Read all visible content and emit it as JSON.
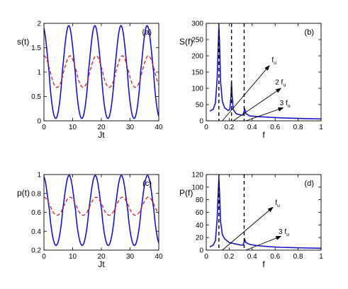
{
  "chart_data": [
    {
      "type": "line",
      "panel_label": "(a)",
      "xlabel": "Jt",
      "ylabel": "s(t)",
      "xlim": [
        0,
        40
      ],
      "ylim": [
        0,
        2.1
      ],
      "xticks": [
        "0",
        "10",
        "20",
        "30",
        "40"
      ],
      "yticks": [
        "0",
        "0.5",
        "1",
        "1.5",
        "2"
      ],
      "series": [
        {
          "style": "solid",
          "color": "#1414c8",
          "kind": "oscillation",
          "period": 9.1,
          "min": 0.05,
          "max": 2.05,
          "start": 2.0,
          "x_start": 0,
          "x_end": 40
        },
        {
          "style": "dashed",
          "color": "#e01818",
          "kind": "oscillation",
          "period": 9.1,
          "min": 0.72,
          "max": 1.4,
          "start": 1.45,
          "x_start": 0,
          "x_end": 40
        }
      ]
    },
    {
      "type": "line",
      "panel_label": "(b)",
      "xlabel": "f",
      "ylabel": "S(f)",
      "xlim": [
        0,
        1
      ],
      "ylim": [
        0,
        300
      ],
      "xticks": [
        "0",
        "0.2",
        "0.4",
        "0.6",
        "0.8",
        "1"
      ],
      "yticks": [
        "0",
        "50",
        "100",
        "150",
        "200",
        "250",
        "300"
      ],
      "series": [
        {
          "style": "solid",
          "color": "#1414c8",
          "kind": "spectrum",
          "points": [
            [
              0.03,
              30
            ],
            [
              0.06,
              35
            ],
            [
              0.08,
              55
            ],
            [
              0.095,
              130
            ],
            [
              0.105,
              240
            ],
            [
              0.11,
              290
            ],
            [
              0.115,
              250
            ],
            [
              0.125,
              120
            ],
            [
              0.14,
              60
            ],
            [
              0.16,
              40
            ],
            [
              0.19,
              32
            ],
            [
              0.205,
              35
            ],
            [
              0.215,
              75
            ],
            [
              0.22,
              120
            ],
            [
              0.225,
              80
            ],
            [
              0.235,
              35
            ],
            [
              0.26,
              22
            ],
            [
              0.3,
              18
            ],
            [
              0.32,
              18
            ],
            [
              0.33,
              30
            ],
            [
              0.335,
              38
            ],
            [
              0.345,
              22
            ],
            [
              0.38,
              15
            ],
            [
              0.45,
              13
            ],
            [
              0.55,
              11
            ],
            [
              0.65,
              9
            ],
            [
              0.75,
              8
            ],
            [
              0.85,
              7
            ],
            [
              1.0,
              6
            ]
          ]
        }
      ],
      "vlines": [
        0.11,
        0.22,
        0.33
      ],
      "annotations": [
        {
          "text": "f",
          "sub": "u",
          "arrow_from": [
            0.14,
            0
          ],
          "arrow_to": [
            0.55,
            170
          ],
          "text_at": [
            0.57,
            180
          ]
        },
        {
          "text": "2 f",
          "sub": "u",
          "arrow_from": [
            0.235,
            0
          ],
          "arrow_to": [
            0.65,
            100
          ],
          "text_at": [
            0.6,
            112
          ]
        },
        {
          "text": "3 f",
          "sub": "u",
          "arrow_from": [
            0.345,
            0
          ],
          "arrow_to": [
            0.67,
            40
          ],
          "text_at": [
            0.64,
            48
          ]
        }
      ]
    },
    {
      "type": "line",
      "panel_label": "(c)",
      "xlabel": "Jt",
      "ylabel": "p(t)",
      "xlim": [
        0,
        40
      ],
      "ylim": [
        0.2,
        1.0
      ],
      "xticks": [
        "0",
        "10",
        "20",
        "30",
        "40"
      ],
      "yticks": [
        "0.2",
        "0.4",
        "0.6",
        "0.8",
        "1"
      ],
      "series": [
        {
          "style": "solid",
          "color": "#1414c8",
          "kind": "oscillation",
          "period": 9.1,
          "min": 0.25,
          "max": 0.99,
          "start": 0.98,
          "x_start": 0,
          "x_end": 40
        },
        {
          "style": "dashed",
          "color": "#e01818",
          "kind": "oscillation",
          "period": 9.1,
          "min": 0.57,
          "max": 0.76,
          "start": 0.78,
          "x_start": 0,
          "x_end": 40
        }
      ]
    },
    {
      "type": "line",
      "panel_label": "(d)",
      "xlabel": "f",
      "ylabel": "P(f)",
      "xlim": [
        0,
        1
      ],
      "ylim": [
        0,
        120
      ],
      "xticks": [
        "0",
        "0.2",
        "0.4",
        "0.6",
        "0.8",
        "1"
      ],
      "yticks": [
        "0",
        "20",
        "40",
        "60",
        "80",
        "100",
        "120"
      ],
      "series": [
        {
          "style": "solid",
          "color": "#1414c8",
          "kind": "spectrum",
          "points": [
            [
              0.03,
              5
            ],
            [
              0.06,
              8
            ],
            [
              0.08,
              15
            ],
            [
              0.095,
              50
            ],
            [
              0.105,
              95
            ],
            [
              0.11,
              115
            ],
            [
              0.115,
              95
            ],
            [
              0.125,
              45
            ],
            [
              0.14,
              25
            ],
            [
              0.16,
              18
            ],
            [
              0.2,
              12
            ],
            [
              0.25,
              10
            ],
            [
              0.3,
              8
            ],
            [
              0.32,
              8
            ],
            [
              0.33,
              13
            ],
            [
              0.335,
              17
            ],
            [
              0.345,
              12
            ],
            [
              0.38,
              9
            ],
            [
              0.45,
              7
            ],
            [
              0.55,
              5.5
            ],
            [
              0.65,
              4.5
            ],
            [
              0.75,
              4
            ],
            [
              0.85,
              3.5
            ],
            [
              1.0,
              3
            ]
          ]
        }
      ],
      "vlines": [
        0.11,
        0.33
      ],
      "annotations": [
        {
          "text": "f",
          "sub": "u",
          "arrow_from": [
            0.14,
            0
          ],
          "arrow_to": [
            0.58,
            68
          ],
          "text_at": [
            0.6,
            72
          ]
        },
        {
          "text": "3 f",
          "sub": "u",
          "arrow_from": [
            0.345,
            0
          ],
          "arrow_to": [
            0.65,
            22
          ],
          "text_at": [
            0.63,
            26
          ]
        }
      ]
    }
  ]
}
